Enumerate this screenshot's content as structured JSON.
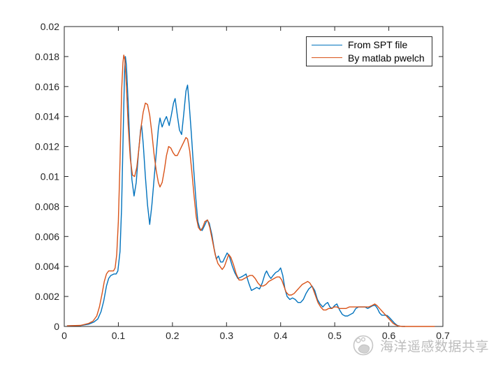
{
  "figure": {
    "background": "#ffffff"
  },
  "legend": {
    "position": "northeast-inside",
    "items": [
      {
        "label": "From SPT file",
        "color": "#0072BD"
      },
      {
        "label": "By matlab pwelch",
        "color": "#D95319"
      }
    ]
  },
  "watermark": {
    "text": "海洋遥感数据共享",
    "logo": "panda-circle-logo",
    "color": "#bdbdbd"
  },
  "chart_data": {
    "type": "line",
    "title": "",
    "xlabel": "",
    "ylabel": "",
    "xlim": [
      0,
      0.7
    ],
    "ylim": [
      0,
      0.02
    ],
    "grid": "off",
    "axis_color": "#262626",
    "x_ticks": {
      "values": [
        0,
        0.1,
        0.2,
        0.3,
        0.4,
        0.5,
        0.6,
        0.7
      ],
      "labels": [
        "0",
        "0.1",
        "0.2",
        "0.3",
        "0.4",
        "0.5",
        "0.6",
        "0.7"
      ]
    },
    "y_ticks": {
      "values": [
        0,
        0.002,
        0.004,
        0.006,
        0.008,
        0.01,
        0.012,
        0.014,
        0.016,
        0.018,
        0.02
      ],
      "labels": [
        "0",
        "0.002",
        "0.004",
        "0.006",
        "0.008",
        "0.01",
        "0.012",
        "0.014",
        "0.016",
        "0.018",
        "0.02"
      ]
    },
    "series": [
      {
        "name": "From SPT file",
        "color": "#0072BD",
        "points": [
          [
            0.005,
            4e-05
          ],
          [
            0.03,
            6e-05
          ],
          [
            0.045,
            0.00015
          ],
          [
            0.055,
            0.0003
          ],
          [
            0.062,
            0.0005
          ],
          [
            0.068,
            0.001
          ],
          [
            0.073,
            0.0017
          ],
          [
            0.078,
            0.0027
          ],
          [
            0.082,
            0.0032
          ],
          [
            0.086,
            0.0034
          ],
          [
            0.092,
            0.0035
          ],
          [
            0.096,
            0.0035
          ],
          [
            0.099,
            0.0037
          ],
          [
            0.103,
            0.005
          ],
          [
            0.106,
            0.008
          ],
          [
            0.109,
            0.013
          ],
          [
            0.1115,
            0.017
          ],
          [
            0.113,
            0.018
          ],
          [
            0.115,
            0.0174
          ],
          [
            0.118,
            0.015
          ],
          [
            0.121,
            0.0123
          ],
          [
            0.125,
            0.0098
          ],
          [
            0.129,
            0.0087
          ],
          [
            0.133,
            0.0096
          ],
          [
            0.137,
            0.0115
          ],
          [
            0.141,
            0.0131
          ],
          [
            0.143,
            0.0134
          ],
          [
            0.146,
            0.0122
          ],
          [
            0.15,
            0.01
          ],
          [
            0.154,
            0.0081
          ],
          [
            0.158,
            0.0068
          ],
          [
            0.162,
            0.0081
          ],
          [
            0.166,
            0.0098
          ],
          [
            0.17,
            0.0115
          ],
          [
            0.174,
            0.0132
          ],
          [
            0.177,
            0.0139
          ],
          [
            0.181,
            0.0133
          ],
          [
            0.185,
            0.0137
          ],
          [
            0.189,
            0.014
          ],
          [
            0.194,
            0.0134
          ],
          [
            0.198,
            0.0141
          ],
          [
            0.202,
            0.0149
          ],
          [
            0.205,
            0.0152
          ],
          [
            0.209,
            0.0141
          ],
          [
            0.213,
            0.0131
          ],
          [
            0.217,
            0.0128
          ],
          [
            0.221,
            0.0142
          ],
          [
            0.225,
            0.0157
          ],
          [
            0.228,
            0.0161
          ],
          [
            0.231,
            0.0148
          ],
          [
            0.235,
            0.0128
          ],
          [
            0.239,
            0.0106
          ],
          [
            0.243,
            0.0086
          ],
          [
            0.247,
            0.007
          ],
          [
            0.251,
            0.0065
          ],
          [
            0.255,
            0.0064
          ],
          [
            0.259,
            0.0067
          ],
          [
            0.264,
            0.0071
          ],
          [
            0.268,
            0.0069
          ],
          [
            0.273,
            0.0061
          ],
          [
            0.277,
            0.0052
          ],
          [
            0.281,
            0.0045
          ],
          [
            0.285,
            0.0047
          ],
          [
            0.289,
            0.0043
          ],
          [
            0.293,
            0.0043
          ],
          [
            0.297,
            0.0046
          ],
          [
            0.301,
            0.0049
          ],
          [
            0.305,
            0.0047
          ],
          [
            0.31,
            0.0041
          ],
          [
            0.315,
            0.0036
          ],
          [
            0.321,
            0.0032
          ],
          [
            0.327,
            0.0033
          ],
          [
            0.332,
            0.0034
          ],
          [
            0.336,
            0.0035
          ],
          [
            0.341,
            0.0029
          ],
          [
            0.346,
            0.0024
          ],
          [
            0.351,
            0.0025
          ],
          [
            0.356,
            0.0026
          ],
          [
            0.361,
            0.0025
          ],
          [
            0.366,
            0.0029
          ],
          [
            0.371,
            0.0035
          ],
          [
            0.374,
            0.0037
          ],
          [
            0.378,
            0.0034
          ],
          [
            0.382,
            0.0032
          ],
          [
            0.386,
            0.0034
          ],
          [
            0.391,
            0.0036
          ],
          [
            0.396,
            0.0037
          ],
          [
            0.4,
            0.0039
          ],
          [
            0.404,
            0.0034
          ],
          [
            0.408,
            0.0025
          ],
          [
            0.412,
            0.002
          ],
          [
            0.417,
            0.0018
          ],
          [
            0.422,
            0.0019
          ],
          [
            0.427,
            0.0018
          ],
          [
            0.432,
            0.0016
          ],
          [
            0.437,
            0.0016
          ],
          [
            0.442,
            0.0018
          ],
          [
            0.447,
            0.0022
          ],
          [
            0.452,
            0.0025
          ],
          [
            0.458,
            0.0027
          ],
          [
            0.463,
            0.0024
          ],
          [
            0.468,
            0.0018
          ],
          [
            0.473,
            0.0015
          ],
          [
            0.478,
            0.0013
          ],
          [
            0.483,
            0.0015
          ],
          [
            0.487,
            0.0016
          ],
          [
            0.491,
            0.0013
          ],
          [
            0.495,
            0.0012
          ],
          [
            0.5,
            0.0014
          ],
          [
            0.504,
            0.0015
          ],
          [
            0.509,
            0.0011
          ],
          [
            0.514,
            0.0008
          ],
          [
            0.519,
            0.0007
          ],
          [
            0.524,
            0.0007
          ],
          [
            0.529,
            0.0008
          ],
          [
            0.534,
            0.0009
          ],
          [
            0.539,
            0.0012
          ],
          [
            0.544,
            0.0013
          ],
          [
            0.55,
            0.0013
          ],
          [
            0.556,
            0.0013
          ],
          [
            0.561,
            0.0012
          ],
          [
            0.566,
            0.0013
          ],
          [
            0.571,
            0.0014
          ],
          [
            0.575,
            0.0014
          ],
          [
            0.579,
            0.0012
          ],
          [
            0.583,
            0.0009
          ],
          [
            0.587,
            0.00075
          ],
          [
            0.592,
            0.00075
          ],
          [
            0.597,
            0.00073
          ],
          [
            0.601,
            0.0006
          ],
          [
            0.606,
            0.0004
          ],
          [
            0.611,
            0.0002
          ],
          [
            0.616,
            6e-05
          ],
          [
            0.622,
            1e-05
          ],
          [
            0.63,
            0
          ]
        ]
      },
      {
        "name": "By matlab pwelch",
        "color": "#D95319",
        "points": [
          [
            0.005,
            4e-05
          ],
          [
            0.03,
            7e-05
          ],
          [
            0.045,
            0.0002
          ],
          [
            0.053,
            0.00035
          ],
          [
            0.06,
            0.0007
          ],
          [
            0.065,
            0.0013
          ],
          [
            0.07,
            0.0022
          ],
          [
            0.074,
            0.003
          ],
          [
            0.078,
            0.0035
          ],
          [
            0.082,
            0.0037
          ],
          [
            0.087,
            0.0037
          ],
          [
            0.091,
            0.0037
          ],
          [
            0.094,
            0.0039
          ],
          [
            0.097,
            0.0048
          ],
          [
            0.1,
            0.007
          ],
          [
            0.103,
            0.011
          ],
          [
            0.106,
            0.0157
          ],
          [
            0.1085,
            0.0176
          ],
          [
            0.11,
            0.0181
          ],
          [
            0.112,
            0.0178
          ],
          [
            0.115,
            0.016
          ],
          [
            0.118,
            0.0135
          ],
          [
            0.122,
            0.0112
          ],
          [
            0.126,
            0.0101
          ],
          [
            0.13,
            0.01
          ],
          [
            0.134,
            0.0106
          ],
          [
            0.138,
            0.0119
          ],
          [
            0.142,
            0.0133
          ],
          [
            0.146,
            0.0143
          ],
          [
            0.15,
            0.0149
          ],
          [
            0.154,
            0.0148
          ],
          [
            0.158,
            0.0141
          ],
          [
            0.162,
            0.0129
          ],
          [
            0.166,
            0.0115
          ],
          [
            0.17,
            0.0104
          ],
          [
            0.174,
            0.0096
          ],
          [
            0.177,
            0.0093
          ],
          [
            0.181,
            0.0096
          ],
          [
            0.185,
            0.0104
          ],
          [
            0.189,
            0.0114
          ],
          [
            0.193,
            0.012
          ],
          [
            0.197,
            0.0119
          ],
          [
            0.201,
            0.0116
          ],
          [
            0.205,
            0.0114
          ],
          [
            0.209,
            0.0114
          ],
          [
            0.213,
            0.0117
          ],
          [
            0.217,
            0.012
          ],
          [
            0.221,
            0.0123
          ],
          [
            0.225,
            0.0126
          ],
          [
            0.228,
            0.0125
          ],
          [
            0.232,
            0.0117
          ],
          [
            0.236,
            0.0103
          ],
          [
            0.24,
            0.0087
          ],
          [
            0.244,
            0.0073
          ],
          [
            0.248,
            0.0066
          ],
          [
            0.252,
            0.0064
          ],
          [
            0.256,
            0.0066
          ],
          [
            0.26,
            0.007
          ],
          [
            0.265,
            0.0071
          ],
          [
            0.269,
            0.0066
          ],
          [
            0.274,
            0.0057
          ],
          [
            0.279,
            0.0048
          ],
          [
            0.284,
            0.0042
          ],
          [
            0.288,
            0.004
          ],
          [
            0.292,
            0.0038
          ],
          [
            0.296,
            0.004
          ],
          [
            0.3,
            0.0044
          ],
          [
            0.304,
            0.0048
          ],
          [
            0.308,
            0.0046
          ],
          [
            0.313,
            0.0041
          ],
          [
            0.318,
            0.0035
          ],
          [
            0.323,
            0.0031
          ],
          [
            0.328,
            0.0031
          ],
          [
            0.333,
            0.0032
          ],
          [
            0.338,
            0.0033
          ],
          [
            0.343,
            0.0034
          ],
          [
            0.348,
            0.0034
          ],
          [
            0.353,
            0.0032
          ],
          [
            0.358,
            0.0029
          ],
          [
            0.363,
            0.0027
          ],
          [
            0.368,
            0.0027
          ],
          [
            0.373,
            0.0028
          ],
          [
            0.378,
            0.003
          ],
          [
            0.383,
            0.0031
          ],
          [
            0.388,
            0.0032
          ],
          [
            0.393,
            0.0033
          ],
          [
            0.398,
            0.0033
          ],
          [
            0.402,
            0.0031
          ],
          [
            0.406,
            0.0027
          ],
          [
            0.41,
            0.0023
          ],
          [
            0.415,
            0.0021
          ],
          [
            0.42,
            0.0021
          ],
          [
            0.425,
            0.0022
          ],
          [
            0.43,
            0.0024
          ],
          [
            0.435,
            0.0026
          ],
          [
            0.44,
            0.0028
          ],
          [
            0.445,
            0.0029
          ],
          [
            0.45,
            0.003
          ],
          [
            0.454,
            0.0029
          ],
          [
            0.459,
            0.0026
          ],
          [
            0.464,
            0.0021
          ],
          [
            0.469,
            0.0016
          ],
          [
            0.474,
            0.0013
          ],
          [
            0.479,
            0.0011
          ],
          [
            0.484,
            0.0011
          ],
          [
            0.489,
            0.0012
          ],
          [
            0.494,
            0.0012
          ],
          [
            0.499,
            0.0013
          ],
          [
            0.504,
            0.0013
          ],
          [
            0.509,
            0.0012
          ],
          [
            0.515,
            0.0012
          ],
          [
            0.521,
            0.0012
          ],
          [
            0.527,
            0.0013
          ],
          [
            0.533,
            0.0013
          ],
          [
            0.539,
            0.0013
          ],
          [
            0.545,
            0.0013
          ],
          [
            0.551,
            0.0013
          ],
          [
            0.557,
            0.0013
          ],
          [
            0.563,
            0.0013
          ],
          [
            0.569,
            0.0014
          ],
          [
            0.574,
            0.0015
          ],
          [
            0.578,
            0.0014
          ],
          [
            0.583,
            0.0012
          ],
          [
            0.588,
            0.001
          ],
          [
            0.593,
            0.0008
          ],
          [
            0.598,
            0.0006
          ],
          [
            0.603,
            0.0004
          ],
          [
            0.608,
            0.0002
          ],
          [
            0.613,
            0.0001
          ],
          [
            0.618,
            3e-05
          ],
          [
            0.625,
            0
          ],
          [
            0.65,
            0
          ],
          [
            0.685,
            0
          ]
        ]
      }
    ]
  }
}
